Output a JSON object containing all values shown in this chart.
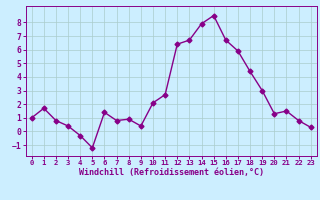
{
  "x": [
    0,
    1,
    2,
    3,
    4,
    5,
    6,
    7,
    8,
    9,
    10,
    11,
    12,
    13,
    14,
    15,
    16,
    17,
    18,
    19,
    20,
    21,
    22,
    23
  ],
  "y": [
    1.0,
    1.7,
    0.8,
    0.4,
    -0.3,
    -1.2,
    1.4,
    0.8,
    0.9,
    0.4,
    2.1,
    2.7,
    6.4,
    6.7,
    7.9,
    8.5,
    6.7,
    5.9,
    4.4,
    3.0,
    1.3,
    1.5,
    0.8,
    0.3
  ],
  "line_color": "#880088",
  "marker": "D",
  "marker_size": 2.5,
  "linewidth": 1.0,
  "bg_color": "#cceeff",
  "grid_color": "#aacccc",
  "tick_color": "#880088",
  "label_color": "#880088",
  "xlabel": "Windchill (Refroidissement éolien,°C)",
  "xlim": [
    -0.5,
    23.5
  ],
  "ylim": [
    -1.8,
    9.2
  ],
  "yticks": [
    -1,
    0,
    1,
    2,
    3,
    4,
    5,
    6,
    7,
    8
  ],
  "xticks": [
    0,
    1,
    2,
    3,
    4,
    5,
    6,
    7,
    8,
    9,
    10,
    11,
    12,
    13,
    14,
    15,
    16,
    17,
    18,
    19,
    20,
    21,
    22,
    23
  ],
  "xlabel_fontsize": 6.0,
  "xtick_fontsize": 5.2,
  "ytick_fontsize": 5.8
}
